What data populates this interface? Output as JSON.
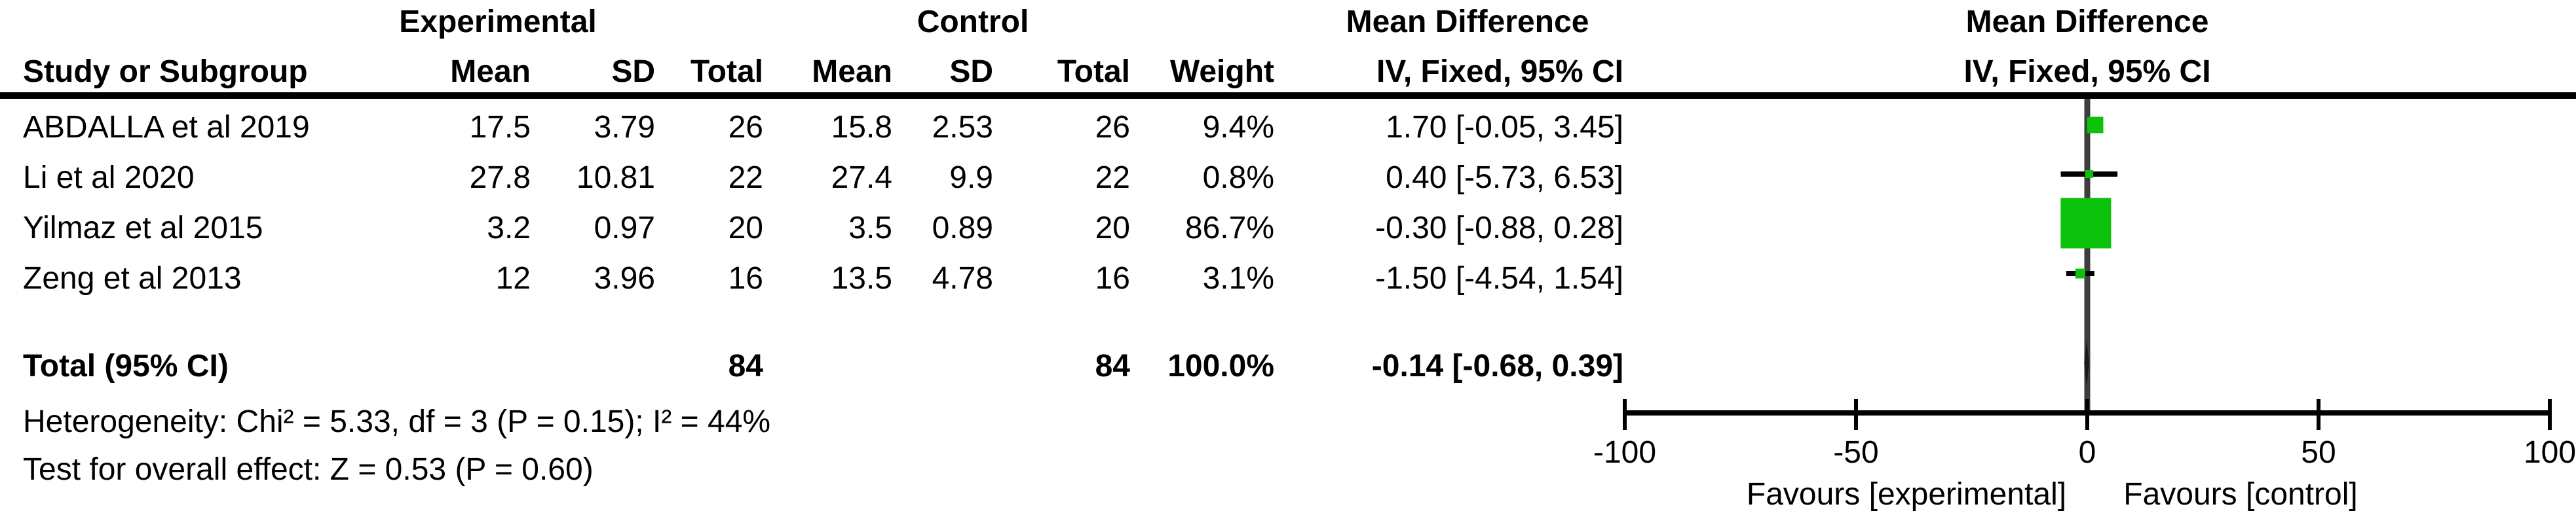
{
  "group_headers": {
    "experimental": "Experimental",
    "control": "Control",
    "mean_difference_left": "Mean Difference",
    "mean_difference_right": "Mean Difference"
  },
  "column_headers": {
    "study": "Study or Subgroup",
    "mean_exp": "Mean",
    "sd_exp": "SD",
    "total_exp": "Total",
    "mean_ctl": "Mean",
    "sd_ctl": "SD",
    "total_ctl": "Total",
    "weight": "Weight",
    "ci_left": "IV, Fixed, 95% CI",
    "ci_right": "IV, Fixed, 95% CI"
  },
  "rows": [
    {
      "study": "ABDALLA et al 2019",
      "mean_e": "17.5",
      "sd_e": "3.79",
      "total_e": "26",
      "mean_c": "15.8",
      "sd_c": "2.53",
      "total_c": "26",
      "weight": "9.4%",
      "ci": "1.70 [-0.05, 3.45]"
    },
    {
      "study": "Li et al 2020",
      "mean_e": "27.8",
      "sd_e": "10.81",
      "total_e": "22",
      "mean_c": "27.4",
      "sd_c": "9.9",
      "total_c": "22",
      "weight": "0.8%",
      "ci": "0.40 [-5.73, 6.53]"
    },
    {
      "study": "Yilmaz et al 2015",
      "mean_e": "3.2",
      "sd_e": "0.97",
      "total_e": "20",
      "mean_c": "3.5",
      "sd_c": "0.89",
      "total_c": "20",
      "weight": "86.7%",
      "ci": "-0.30 [-0.88, 0.28]"
    },
    {
      "study": "Zeng et al 2013",
      "mean_e": "12",
      "sd_e": "3.96",
      "total_e": "16",
      "mean_c": "13.5",
      "sd_c": "4.78",
      "total_c": "16",
      "weight": "3.1%",
      "ci": "-1.50 [-4.54, 1.54]"
    }
  ],
  "total_row": {
    "label": "Total (95% CI)",
    "total_e": "84",
    "total_c": "84",
    "weight": "100.0%",
    "ci": "-0.14 [-0.68, 0.39]"
  },
  "footnotes": {
    "heterogeneity": "Heterogeneity: Chi² = 5.33, df = 3 (P = 0.15); I² = 44%",
    "overall_effect": "Test for overall effect: Z = 0.53 (P = 0.60)"
  },
  "chart_data": {
    "type": "forest",
    "effect_measure": "Mean Difference",
    "model": "IV, Fixed, 95% CI",
    "x_axis": {
      "min": -100,
      "max": 100,
      "ticks": [
        -100,
        -50,
        0,
        50,
        100
      ],
      "tick_labels": [
        "-100",
        "-50",
        "0",
        "50",
        "100"
      ],
      "favours_left": "Favours [experimental]",
      "favours_right": "Favours [control]"
    },
    "studies": [
      {
        "name": "ABDALLA et al 2019",
        "md": 1.7,
        "ci_low": -0.05,
        "ci_high": 3.45,
        "weight_pct": 9.4
      },
      {
        "name": "Li et al 2020",
        "md": 0.4,
        "ci_low": -5.73,
        "ci_high": 6.53,
        "weight_pct": 0.8
      },
      {
        "name": "Yilmaz et al 2015",
        "md": -0.3,
        "ci_low": -0.88,
        "ci_high": 0.28,
        "weight_pct": 86.7
      },
      {
        "name": "Zeng et al 2013",
        "md": -1.5,
        "ci_low": -4.54,
        "ci_high": 1.54,
        "weight_pct": 3.1
      }
    ],
    "total": {
      "md": -0.14,
      "ci_low": -0.68,
      "ci_high": 0.39,
      "weight_pct": 100.0
    },
    "colors": {
      "marker": "#0cc10c",
      "ci_line": "#000000",
      "zero_line": "#3d3d3d",
      "axis": "#000000",
      "diamond": "#1a1a1a"
    }
  }
}
